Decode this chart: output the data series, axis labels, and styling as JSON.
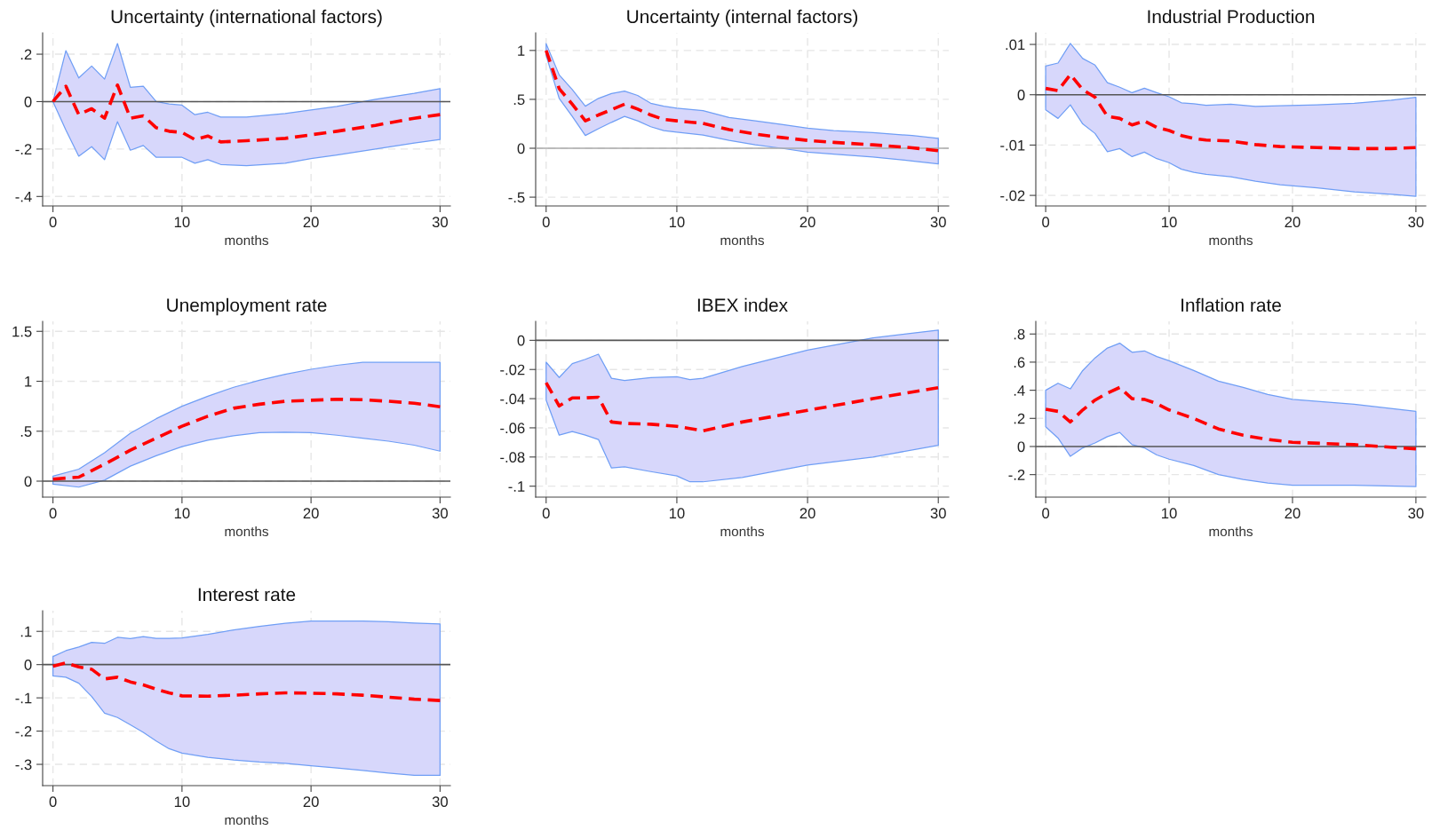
{
  "chart_data": [
    {
      "type": "line",
      "title": "Uncertainty (international factors)",
      "xlabel": "months",
      "xlim": [
        -0.8,
        30.8
      ],
      "xticks": [
        0,
        10,
        20,
        30
      ],
      "ylim": [
        -0.44,
        0.29
      ],
      "yticks": [
        {
          "value": 0.2,
          "label": ".2"
        },
        0,
        {
          "value": -0.2,
          "label": "-.2"
        },
        {
          "value": -0.4,
          "label": "-.4"
        }
      ],
      "grid": true,
      "line_style": "dashed",
      "marker": "none",
      "x": [
        0,
        1,
        2,
        3,
        4,
        5,
        6,
        7,
        8,
        9,
        10,
        11,
        12,
        13,
        15,
        18,
        20,
        22,
        25,
        28,
        30
      ],
      "series": [
        {
          "color": "#ff0000",
          "values": [
            0,
            0.065,
            -0.055,
            -0.03,
            -0.07,
            0.07,
            -0.07,
            -0.06,
            -0.11,
            -0.125,
            -0.13,
            -0.16,
            -0.145,
            -0.17,
            -0.165,
            -0.155,
            -0.14,
            -0.125,
            -0.1,
            -0.07,
            -0.055
          ],
          "upper": [
            0,
            0.215,
            0.1,
            0.15,
            0.095,
            0.245,
            0.06,
            0.065,
            0.0,
            -0.01,
            -0.015,
            -0.055,
            -0.045,
            -0.065,
            -0.065,
            -0.05,
            -0.035,
            -0.02,
            0.01,
            0.035,
            0.055
          ],
          "lower": [
            0,
            -0.12,
            -0.23,
            -0.19,
            -0.245,
            -0.085,
            -0.205,
            -0.185,
            -0.235,
            -0.235,
            -0.235,
            -0.26,
            -0.245,
            -0.265,
            -0.27,
            -0.26,
            -0.24,
            -0.225,
            -0.2,
            -0.175,
            -0.16
          ]
        }
      ],
      "ref_lines": [
        {
          "axis": "y",
          "value": 0,
          "color": "#555555"
        }
      ]
    },
    {
      "type": "line",
      "title": "Uncertainty (internal factors)",
      "xlabel": "months",
      "xlim": [
        -0.8,
        30.8
      ],
      "xticks": [
        0,
        10,
        20,
        30
      ],
      "ylim": [
        -0.59,
        1.18
      ],
      "yticks": [
        1,
        {
          "value": 0.5,
          "label": ".5"
        },
        0,
        {
          "value": -0.5,
          "label": "-.5"
        }
      ],
      "grid": true,
      "line_style": "dashed",
      "marker": "none",
      "x": [
        0,
        1,
        2,
        3,
        4,
        5,
        6,
        7,
        8,
        9,
        10,
        12,
        14,
        16,
        18,
        20,
        22,
        25,
        28,
        30
      ],
      "series": [
        {
          "color": "#ff0000",
          "values": [
            1.0,
            0.61,
            0.45,
            0.28,
            0.34,
            0.395,
            0.45,
            0.4,
            0.34,
            0.295,
            0.28,
            0.255,
            0.19,
            0.145,
            0.11,
            0.08,
            0.06,
            0.035,
            0.005,
            -0.025
          ],
          "upper": [
            1.07,
            0.75,
            0.6,
            0.43,
            0.51,
            0.56,
            0.585,
            0.54,
            0.46,
            0.43,
            0.41,
            0.385,
            0.315,
            0.28,
            0.245,
            0.205,
            0.18,
            0.16,
            0.13,
            0.1
          ],
          "lower": [
            0.95,
            0.51,
            0.325,
            0.13,
            0.2,
            0.265,
            0.325,
            0.28,
            0.22,
            0.18,
            0.165,
            0.135,
            0.08,
            0.035,
            0.0,
            -0.04,
            -0.06,
            -0.09,
            -0.13,
            -0.16
          ]
        }
      ],
      "ref_lines": [
        {
          "axis": "y",
          "value": 0,
          "color": "#aaaaaa"
        }
      ]
    },
    {
      "type": "line",
      "title": "Industrial Production",
      "xlabel": "months",
      "xlim": [
        -0.8,
        30.8
      ],
      "xticks": [
        0,
        10,
        20,
        30
      ],
      "ylim": [
        -0.0221,
        0.0123
      ],
      "yticks": [
        {
          "value": 0.01,
          "label": ".01"
        },
        0,
        {
          "value": -0.01,
          "label": "-.01"
        },
        {
          "value": -0.02,
          "label": "-.02"
        }
      ],
      "grid": true,
      "line_style": "dashed",
      "marker": "none",
      "x": [
        0,
        1,
        2,
        3,
        4,
        5,
        6,
        7,
        8,
        9,
        10,
        11,
        12,
        13,
        15,
        17,
        19,
        22,
        25,
        28,
        30
      ],
      "series": [
        {
          "color": "#ff0000",
          "values": [
            0.00125,
            0.0008,
            0.004,
            0.001,
            -0.0005,
            -0.0043,
            -0.0047,
            -0.006,
            -0.0052,
            -0.0065,
            -0.0071,
            -0.0081,
            -0.0087,
            -0.009,
            -0.0092,
            -0.0099,
            -0.0103,
            -0.0105,
            -0.0107,
            -0.0107,
            -0.0105
          ],
          "upper": [
            0.0057,
            0.0063,
            0.0102,
            0.0072,
            0.0059,
            0.0024,
            0.0015,
            0.0004,
            0.0013,
            0.0004,
            -0.0004,
            -0.0016,
            -0.0018,
            -0.0021,
            -0.0019,
            -0.0023,
            -0.0022,
            -0.002,
            -0.0017,
            -0.0011,
            -0.0005
          ],
          "lower": [
            -0.003,
            -0.0047,
            -0.002,
            -0.0058,
            -0.0077,
            -0.0113,
            -0.0107,
            -0.0123,
            -0.0114,
            -0.0127,
            -0.0135,
            -0.0148,
            -0.0154,
            -0.0158,
            -0.0163,
            -0.0172,
            -0.0179,
            -0.0185,
            -0.0193,
            -0.0198,
            -0.0202
          ]
        }
      ],
      "ref_lines": [
        {
          "axis": "y",
          "value": 0,
          "color": "#555555"
        }
      ]
    },
    {
      "type": "line",
      "title": "Unemployment rate",
      "xlabel": "months",
      "xlim": [
        -0.8,
        30.8
      ],
      "xticks": [
        0,
        10,
        20,
        30
      ],
      "ylim": [
        -0.16,
        1.6
      ],
      "yticks": [
        1.5,
        1,
        {
          "value": 0.5,
          "label": ".5"
        },
        0
      ],
      "grid": true,
      "line_style": "dashed",
      "marker": "none",
      "x": [
        0,
        2,
        4,
        6,
        8,
        10,
        12,
        14,
        16,
        18,
        20,
        22,
        24,
        26,
        28,
        30
      ],
      "series": [
        {
          "color": "#ff0000",
          "values": [
            0.02,
            0.04,
            0.17,
            0.31,
            0.43,
            0.55,
            0.65,
            0.73,
            0.77,
            0.8,
            0.81,
            0.82,
            0.815,
            0.8,
            0.78,
            0.745
          ],
          "upper": [
            0.05,
            0.12,
            0.285,
            0.48,
            0.625,
            0.75,
            0.85,
            0.94,
            1.01,
            1.07,
            1.12,
            1.16,
            1.19,
            1.19,
            1.19,
            1.19
          ],
          "lower": [
            -0.03,
            -0.06,
            0.01,
            0.15,
            0.255,
            0.345,
            0.41,
            0.455,
            0.485,
            0.49,
            0.485,
            0.46,
            0.43,
            0.4,
            0.36,
            0.3
          ]
        }
      ],
      "ref_lines": [
        {
          "axis": "y",
          "value": 0,
          "color": "#555555"
        }
      ]
    },
    {
      "type": "line",
      "title": "IBEX index",
      "xlabel": "months",
      "xlim": [
        -0.8,
        30.8
      ],
      "xticks": [
        0,
        10,
        20,
        30
      ],
      "ylim": [
        -0.1075,
        0.013
      ],
      "yticks": [
        0,
        {
          "value": -0.02,
          "label": "-.02"
        },
        {
          "value": -0.04,
          "label": "-.04"
        },
        {
          "value": -0.06,
          "label": "-.06"
        },
        {
          "value": -0.08,
          "label": "-.08"
        },
        {
          "value": -0.1,
          "label": "-.1"
        }
      ],
      "grid": true,
      "line_style": "dashed",
      "marker": "none",
      "x": [
        0,
        1,
        2,
        3,
        4,
        5,
        6,
        8,
        10,
        11,
        12,
        15,
        20,
        25,
        30
      ],
      "series": [
        {
          "color": "#ff0000",
          "values": [
            -0.029,
            -0.045,
            -0.0395,
            -0.0395,
            -0.039,
            -0.056,
            -0.057,
            -0.0575,
            -0.059,
            -0.0605,
            -0.062,
            -0.056,
            -0.048,
            -0.04,
            -0.0325
          ],
          "upper": [
            -0.015,
            -0.0255,
            -0.016,
            -0.013,
            -0.0095,
            -0.026,
            -0.0275,
            -0.0255,
            -0.025,
            -0.027,
            -0.026,
            -0.018,
            -0.0067,
            0.0017,
            0.007
          ],
          "lower": [
            -0.041,
            -0.065,
            -0.0625,
            -0.065,
            -0.068,
            -0.0875,
            -0.0867,
            -0.09,
            -0.093,
            -0.097,
            -0.097,
            -0.094,
            -0.0855,
            -0.08,
            -0.072
          ]
        }
      ],
      "ref_lines": [
        {
          "axis": "y",
          "value": 0,
          "color": "#555555"
        }
      ]
    },
    {
      "type": "line",
      "title": "Inflation rate",
      "xlabel": "months",
      "xlim": [
        -0.8,
        30.8
      ],
      "xticks": [
        0,
        10,
        20,
        30
      ],
      "ylim": [
        -0.36,
        0.89
      ],
      "yticks": [
        {
          "value": 0.8,
          "label": ".8"
        },
        {
          "value": 0.6,
          "label": ".6"
        },
        {
          "value": 0.4,
          "label": ".4"
        },
        {
          "value": 0.2,
          "label": ".2"
        },
        0,
        {
          "value": -0.2,
          "label": "-.2"
        }
      ],
      "grid": true,
      "line_style": "dashed",
      "marker": "none",
      "x": [
        0,
        1,
        2,
        3,
        4,
        5,
        6,
        7,
        8,
        9,
        10,
        12,
        14,
        16,
        18,
        20,
        25,
        30
      ],
      "series": [
        {
          "color": "#ff0000",
          "values": [
            0.265,
            0.25,
            0.175,
            0.26,
            0.33,
            0.38,
            0.42,
            0.34,
            0.335,
            0.305,
            0.26,
            0.2,
            0.125,
            0.08,
            0.05,
            0.03,
            0.013,
            -0.017
          ],
          "upper": [
            0.4,
            0.45,
            0.41,
            0.54,
            0.63,
            0.7,
            0.735,
            0.67,
            0.68,
            0.64,
            0.61,
            0.54,
            0.465,
            0.42,
            0.37,
            0.335,
            0.3,
            0.25
          ],
          "lower": [
            0.14,
            0.06,
            -0.07,
            -0.01,
            0.025,
            0.07,
            0.1,
            0.013,
            -0.01,
            -0.06,
            -0.09,
            -0.135,
            -0.2,
            -0.235,
            -0.26,
            -0.275,
            -0.275,
            -0.285
          ]
        }
      ],
      "ref_lines": [
        {
          "axis": "y",
          "value": 0,
          "color": "#555555"
        }
      ]
    },
    {
      "type": "line",
      "title": "Interest rate",
      "xlabel": "months",
      "xlim": [
        -0.8,
        30.8
      ],
      "xticks": [
        0,
        10,
        20,
        30
      ],
      "ylim": [
        -0.364,
        0.162
      ],
      "yticks": [
        {
          "value": 0.1,
          "label": ".1"
        },
        0,
        {
          "value": -0.1,
          "label": "-.1"
        },
        {
          "value": -0.2,
          "label": "-.2"
        },
        {
          "value": -0.3,
          "label": "-.3"
        }
      ],
      "grid": true,
      "line_style": "dashed",
      "marker": "none",
      "x": [
        0,
        1,
        2,
        3,
        4,
        5,
        6,
        7,
        8,
        9,
        10,
        12,
        14,
        16,
        18,
        20,
        22,
        24,
        26,
        28,
        30
      ],
      "series": [
        {
          "color": "#ff0000",
          "values": [
            -0.005,
            0.005,
            -0.007,
            -0.014,
            -0.043,
            -0.038,
            -0.052,
            -0.061,
            -0.074,
            -0.085,
            -0.094,
            -0.095,
            -0.092,
            -0.088,
            -0.085,
            -0.086,
            -0.088,
            -0.092,
            -0.098,
            -0.104,
            -0.108
          ],
          "upper": [
            0.024,
            0.042,
            0.053,
            0.067,
            0.064,
            0.082,
            0.078,
            0.084,
            0.079,
            0.079,
            0.08,
            0.091,
            0.104,
            0.115,
            0.124,
            0.131,
            0.131,
            0.131,
            0.129,
            0.125,
            0.122
          ],
          "lower": [
            -0.034,
            -0.038,
            -0.056,
            -0.096,
            -0.146,
            -0.159,
            -0.181,
            -0.204,
            -0.23,
            -0.253,
            -0.266,
            -0.279,
            -0.287,
            -0.293,
            -0.297,
            -0.304,
            -0.311,
            -0.318,
            -0.326,
            -0.333,
            -0.333
          ]
        }
      ],
      "ref_lines": [
        {
          "axis": "y",
          "value": 0,
          "color": "#555555"
        }
      ]
    }
  ]
}
